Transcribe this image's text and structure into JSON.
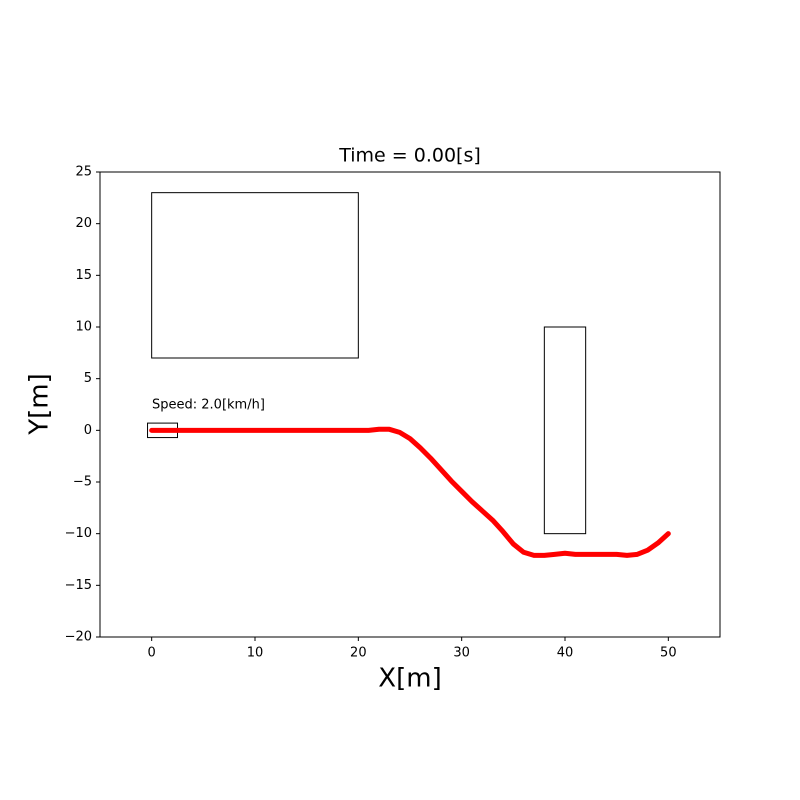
{
  "chart_data": {
    "type": "line",
    "title": "Time = 0.00[s]",
    "x_label": "X[m]",
    "y_label": "Y[m]",
    "annotation": "Speed: 2.0[km/h]",
    "x": [
      0,
      2,
      4,
      6,
      8,
      10,
      12,
      14,
      16,
      18,
      20,
      21,
      22,
      23,
      24,
      25,
      26,
      27,
      28,
      29,
      30,
      31,
      32,
      33,
      34,
      35,
      36,
      37,
      38,
      39,
      40,
      41,
      42,
      44,
      45,
      46,
      47,
      48,
      49,
      50
    ],
    "values": [
      0,
      0,
      0,
      0,
      0,
      0,
      0,
      0,
      0,
      0,
      0,
      0,
      0.1,
      0.1,
      -0.2,
      -0.8,
      -1.7,
      -2.7,
      -3.8,
      -4.9,
      -5.9,
      -6.9,
      -7.8,
      -8.7,
      -9.8,
      -11.0,
      -11.8,
      -12.1,
      -12.1,
      -12.0,
      -11.9,
      -12.0,
      -12.0,
      -12.0,
      -12.0,
      -12.1,
      -12.0,
      -11.6,
      -10.9,
      -10.0
    ],
    "color": "#ff0000",
    "shapes": [
      {
        "x": [
          0,
          20
        ],
        "y": [
          7,
          23
        ]
      },
      {
        "x": [
          38,
          42
        ],
        "y": [
          -10,
          10
        ]
      },
      {
        "x": [
          -0.4,
          2.5
        ],
        "y": [
          -0.7,
          0.7
        ]
      }
    ],
    "xlim": [
      -5,
      55
    ],
    "xticks": [
      0,
      10,
      20,
      30,
      40,
      50
    ],
    "ylim": [
      -20,
      25
    ],
    "yticks": [
      {
        "value": -20,
        "label": "−20"
      },
      {
        "value": -15,
        "label": "−15"
      },
      {
        "value": -10,
        "label": "−10"
      },
      {
        "value": -5,
        "label": "−5"
      },
      0,
      5,
      10,
      15,
      20,
      25
    ],
    "grid": false
  }
}
